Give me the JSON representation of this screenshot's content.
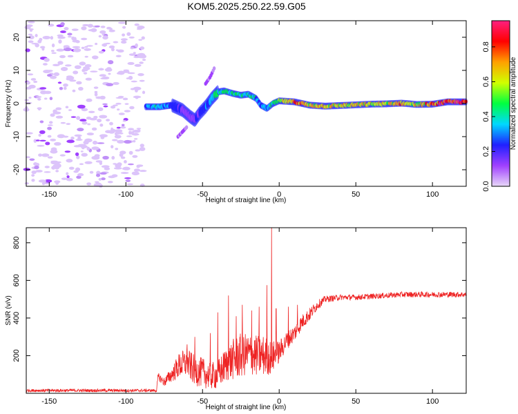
{
  "figure": {
    "title": "KOM5.2025.250.22.59.G05"
  },
  "chart_data": [
    {
      "type": "heatmap",
      "name": "spectrogram",
      "xlabel": "Height of straight line (km)",
      "ylabel": "Frequency (Hz)",
      "xlim": [
        -165,
        122
      ],
      "ylim": [
        -25,
        25
      ],
      "xticks": [
        -150,
        -100,
        -50,
        0,
        50,
        100
      ],
      "yticks": [
        -20,
        -10,
        0,
        10,
        20
      ],
      "colorbar": {
        "label": "Normalized spectral amplitude",
        "range": [
          0,
          0.95
        ],
        "ticks": [
          "0.0",
          "0.2",
          "0.4",
          "0.6",
          "0.8"
        ],
        "tick_values": [
          0.0,
          0.2,
          0.4,
          0.6,
          0.8
        ],
        "colors": [
          "#e8d8f8",
          "#a040ff",
          "#2020ff",
          "#00d8ff",
          "#00ff40",
          "#d0ff00",
          "#ffa000",
          "#ff0000",
          "#ff2080"
        ]
      },
      "noise_region_x": [
        -165,
        -88
      ],
      "signal_path": {
        "x": [
          -87,
          -78,
          -70,
          -63,
          -58,
          -55,
          -52,
          -48,
          -44,
          -40,
          -36,
          -30,
          -25,
          -20,
          -15,
          -12,
          -8,
          -4,
          0,
          10,
          20,
          30,
          40,
          50,
          60,
          70,
          80,
          90,
          100,
          110,
          122
        ],
        "f": [
          -1,
          -1,
          -0.5,
          -2,
          -4,
          -5,
          -3,
          -1,
          1.5,
          3.5,
          3.8,
          3,
          2.5,
          2.8,
          1.5,
          -0.5,
          -1.5,
          0,
          0.8,
          0.5,
          -0.5,
          -0.8,
          -0.6,
          -0.4,
          -0.2,
          -0.1,
          0.1,
          -0.3,
          -0.2,
          0.5,
          0.5
        ],
        "amp": [
          0.3,
          0.4,
          0.25,
          0.15,
          0.15,
          0.15,
          0.2,
          0.25,
          0.35,
          0.45,
          0.45,
          0.4,
          0.4,
          0.4,
          0.35,
          0.3,
          0.3,
          0.45,
          0.55,
          0.7,
          0.6,
          0.65,
          0.6,
          0.65,
          0.6,
          0.6,
          0.65,
          0.6,
          0.7,
          0.85,
          0.8
        ]
      },
      "upper_branch": {
        "x": [
          -48,
          -45,
          -42
        ],
        "f": [
          6,
          8,
          11
        ]
      },
      "lower_branch": {
        "x": [
          -66,
          -60
        ],
        "f": [
          -10,
          -7
        ]
      }
    },
    {
      "type": "line",
      "name": "snr",
      "xlabel": "Height of straight line (km)",
      "ylabel": "SNR (v/v)",
      "xlim": [
        -165,
        122
      ],
      "ylim": [
        0,
        880
      ],
      "xticks": [
        -150,
        -100,
        -50,
        0,
        50,
        100
      ],
      "yticks": [
        200,
        400,
        600,
        800
      ],
      "color": "#ee2222",
      "series": [
        {
          "name": "SNR",
          "envelope_x": [
            -165,
            -140,
            -110,
            -90,
            -80,
            -79,
            -75,
            -70,
            -65,
            -60,
            -55,
            -50,
            -45,
            -40,
            -35,
            -30,
            -25,
            -20,
            -15,
            -10,
            -5,
            0,
            5,
            10,
            15,
            20,
            25,
            30,
            40,
            50,
            60,
            70,
            80,
            90,
            100,
            110,
            122
          ],
          "envelope_y": [
            15,
            15,
            15,
            15,
            15,
            90,
            60,
            100,
            150,
            160,
            120,
            110,
            90,
            100,
            150,
            180,
            200,
            210,
            200,
            200,
            190,
            220,
            280,
            320,
            380,
            420,
            470,
            500,
            510,
            510,
            515,
            520,
            525,
            525,
            525,
            525,
            525
          ],
          "spread": [
            8,
            8,
            8,
            8,
            8,
            20,
            25,
            40,
            70,
            80,
            80,
            80,
            70,
            80,
            90,
            110,
            120,
            110,
            110,
            110,
            90,
            60,
            50,
            45,
            40,
            35,
            25,
            18,
            15,
            15,
            15,
            15,
            15,
            15,
            15,
            15,
            15
          ],
          "spikes": [
            {
              "x": -60,
              "y": 260
            },
            {
              "x": -55,
              "y": 300
            },
            {
              "x": -45,
              "y": 320
            },
            {
              "x": -40,
              "y": 430
            },
            {
              "x": -33,
              "y": 520
            },
            {
              "x": -28,
              "y": 410
            },
            {
              "x": -24,
              "y": 470
            },
            {
              "x": -18,
              "y": 440
            },
            {
              "x": -13,
              "y": 460
            },
            {
              "x": -8,
              "y": 575
            },
            {
              "x": -5,
              "y": 880
            },
            {
              "x": -2,
              "y": 450
            },
            {
              "x": 6,
              "y": 460
            },
            {
              "x": 12,
              "y": 470
            }
          ]
        }
      ]
    }
  ]
}
